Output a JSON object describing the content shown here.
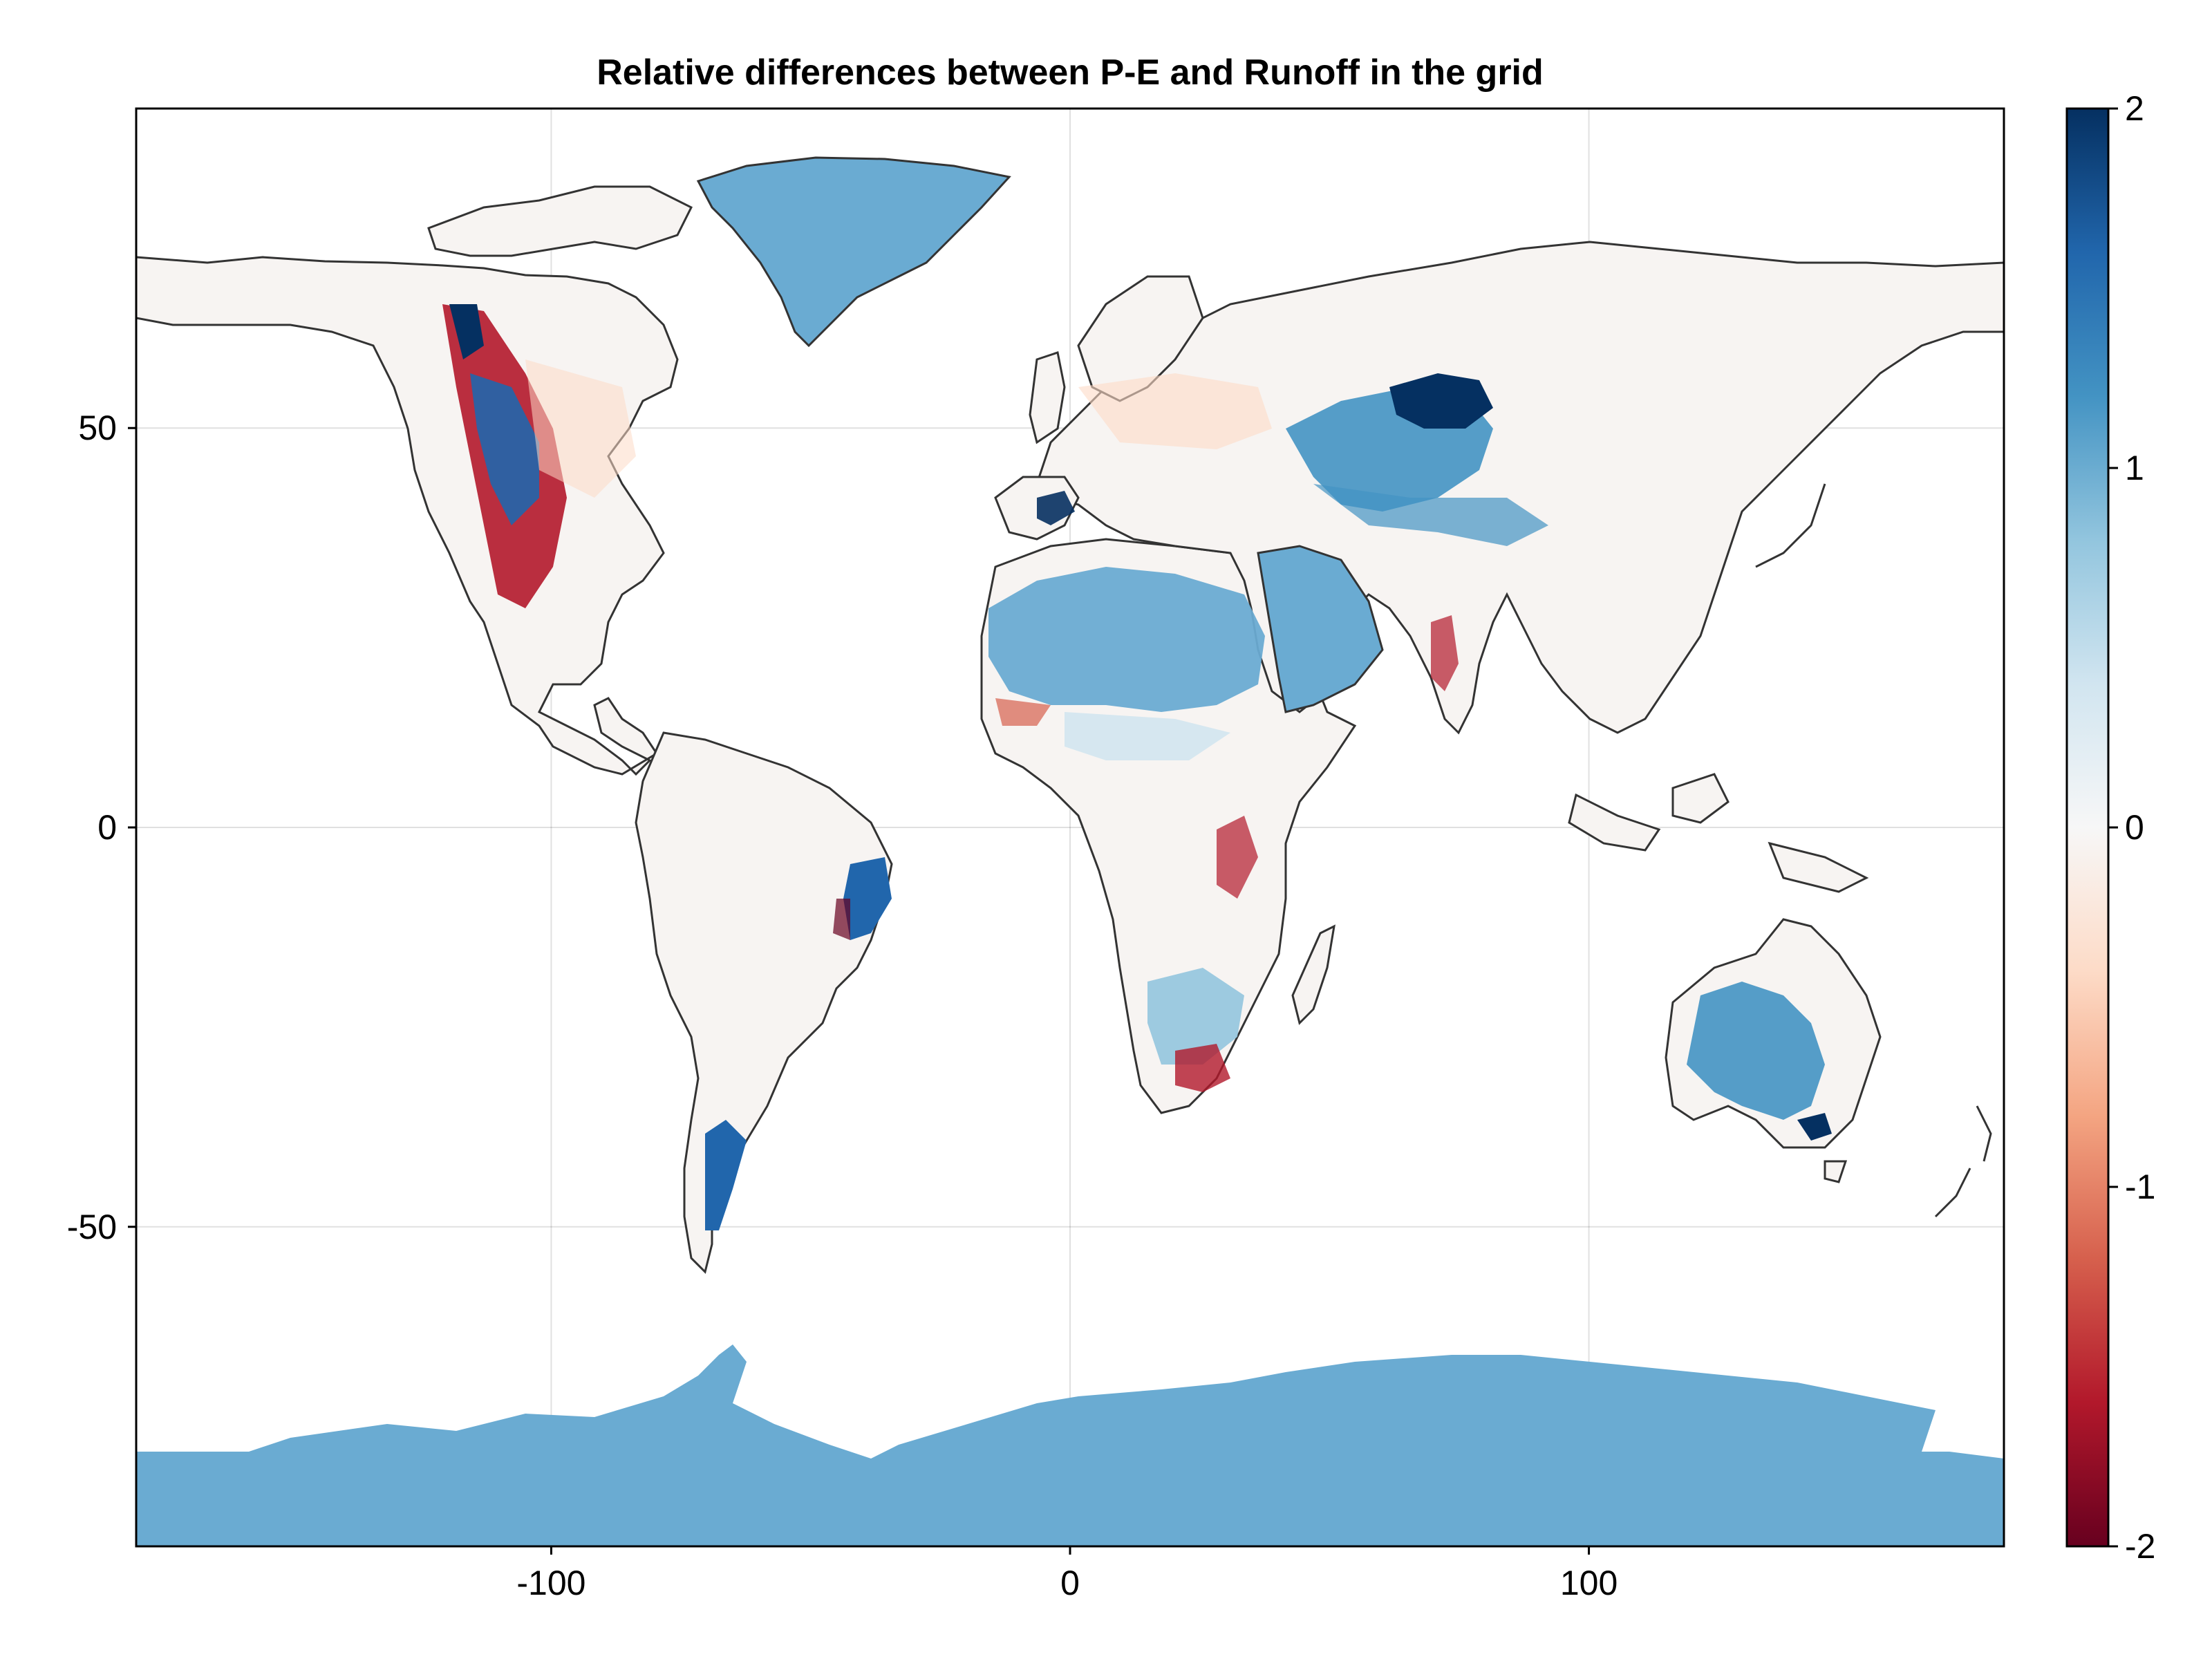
{
  "chart_data": {
    "type": "heatmap",
    "title": "Relative differences between P-E and Runoff in the grid",
    "xlabel": "",
    "ylabel": "",
    "xlim": [
      -180,
      180
    ],
    "ylim": [
      -90,
      90
    ],
    "x_ticks": [
      -100,
      0,
      100
    ],
    "y_ticks": [
      -50,
      0,
      50
    ],
    "x_tick_labels": [
      "-100",
      "0",
      "100"
    ],
    "y_tick_labels": [
      "-50",
      "0",
      "50"
    ],
    "grid": true,
    "colorbar": {
      "colormap": "RdBu",
      "range": [
        -2,
        2
      ],
      "ticks": [
        -2,
        -1,
        0,
        1,
        2
      ],
      "tick_labels": [
        "-2",
        "-1",
        "0",
        "1",
        "2"
      ],
      "color_stops": [
        "#67001f",
        "#b2182b",
        "#d6604d",
        "#f4a582",
        "#fddbc7",
        "#f7f7f7",
        "#d1e5f0",
        "#92c5de",
        "#4393c3",
        "#2166ac",
        "#053061"
      ]
    },
    "colors": {
      "ocean": "#ffffff",
      "land_near_zero": "#f7f7f7",
      "ice_sheet": "#6aabd2",
      "coastline": "#333333"
    },
    "highlighted_regions": [
      {
        "region": "Greenland",
        "value": 1
      },
      {
        "region": "Antarctica",
        "value": 1
      },
      {
        "region": "Sahara",
        "value": 1
      },
      {
        "region": "Arabian Peninsula",
        "value": 1
      },
      {
        "region": "Central Asia",
        "value": 1.5
      },
      {
        "region": "Western North America",
        "value": -1.5
      },
      {
        "region": "Eastern Brazil",
        "value": 2
      },
      {
        "region": "Southeast Australia",
        "value": 1.5
      },
      {
        "region": "Patagonia",
        "value": 1.5
      },
      {
        "region": "Southern Africa",
        "value": 1
      }
    ]
  }
}
